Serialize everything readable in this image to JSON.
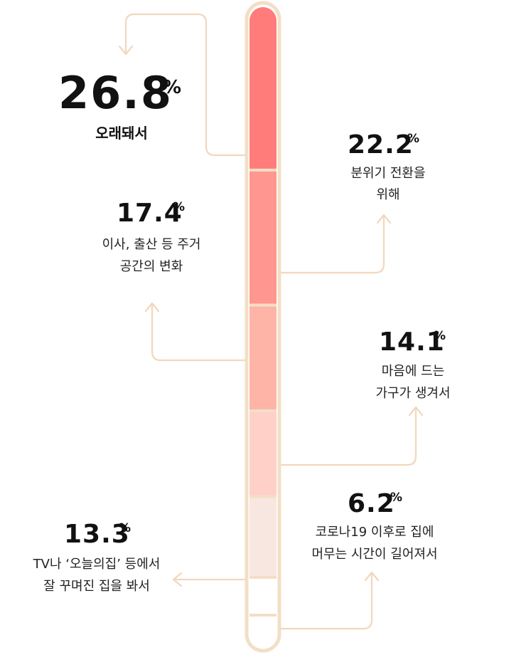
{
  "colors": {
    "frame": "#F3DFC6",
    "connector": "#F1D7BC",
    "segments": [
      "#FF7C7A",
      "#FF968F",
      "#FFB4A8",
      "#FFD0C7",
      "#F8E6E0",
      "#FFFFFF"
    ]
  },
  "chart_data": {
    "type": "bar",
    "orientation": "stacked-vertical",
    "unit": "%",
    "categories": [
      "오래돼서",
      "분위기 전환을 위해",
      "이사, 출산 등 주거 공간의 변화",
      "마음에 드는 가구가 생겨서",
      "TV나 ‘오늘의집’ 등에서 잘 꾸며진 집을 봐서",
      "코로나19 이후로 집에 머무는 시간이 길어져서"
    ],
    "values": [
      26.8,
      22.2,
      17.4,
      14.1,
      13.3,
      6.2
    ],
    "labels": [
      {
        "value": "26.8",
        "pct": "%",
        "lines": [
          "오래돼서"
        ]
      },
      {
        "value": "22.2",
        "pct": "%",
        "lines": [
          "분위기 전환을",
          "위해"
        ]
      },
      {
        "value": "17.4",
        "pct": "%",
        "lines": [
          "이사, 출산 등 주거",
          "공간의 변화"
        ]
      },
      {
        "value": "14.1",
        "pct": "%",
        "lines": [
          "마음에 드는",
          "가구가 생겨서"
        ]
      },
      {
        "value": "13.3",
        "pct": "%",
        "lines": [
          "TV나 ‘오늘의집’ 등에서",
          "잘 꾸며진 집을 봐서"
        ]
      },
      {
        "value": "6.2",
        "pct": "%",
        "lines": [
          "코로나19 이후로 집에",
          "머무는 시간이 길어져서"
        ]
      }
    ]
  }
}
